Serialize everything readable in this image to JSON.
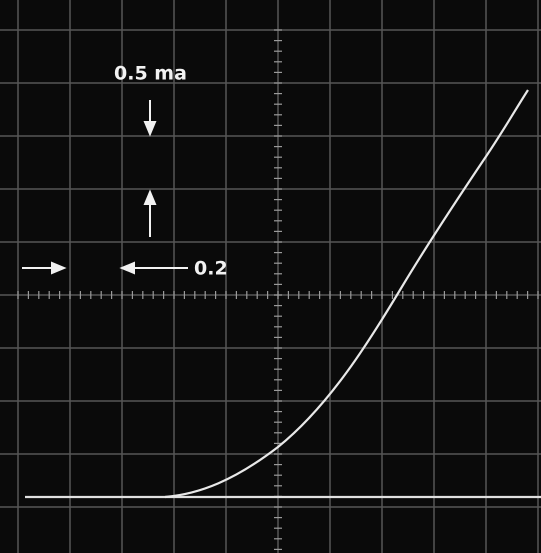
{
  "labels": {
    "vertical_scale": "0.5 ma",
    "horizontal_scale": "0.2"
  }
}
